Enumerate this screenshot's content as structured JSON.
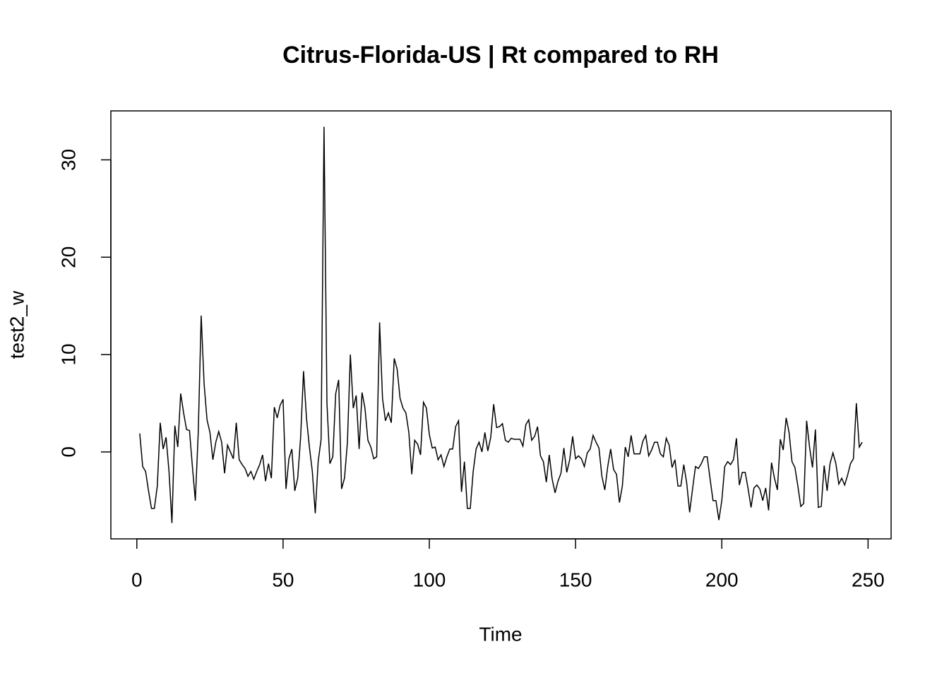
{
  "chart_data": {
    "type": "line",
    "title": "Citrus-Florida-US | Rt compared to RH",
    "x_label": "Time",
    "y_label": "test2_w",
    "x": [
      1,
      2,
      3,
      4,
      5,
      6,
      7,
      8,
      9,
      10,
      11,
      12,
      13,
      14,
      15,
      16,
      17,
      18,
      19,
      20,
      21,
      22,
      23,
      24,
      25,
      26,
      27,
      28,
      29,
      30,
      31,
      32,
      33,
      34,
      35,
      36,
      37,
      38,
      39,
      40,
      41,
      42,
      43,
      44,
      45,
      46,
      47,
      48,
      49,
      50,
      51,
      52,
      53,
      54,
      55,
      56,
      57,
      58,
      59,
      60,
      61,
      62,
      63,
      64,
      65,
      66,
      67,
      68,
      69,
      70,
      71,
      72,
      73,
      74,
      75,
      76,
      77,
      78,
      79,
      80,
      81,
      82,
      83,
      84,
      85,
      86,
      87,
      88,
      89,
      90,
      91,
      92,
      93,
      94,
      95,
      96,
      97,
      98,
      99,
      100,
      101,
      102,
      103,
      104,
      105,
      106,
      107,
      108,
      109,
      110,
      111,
      112,
      113,
      114,
      115,
      116,
      117,
      118,
      119,
      120,
      121,
      122,
      123,
      124,
      125,
      126,
      127,
      128,
      129,
      130,
      131,
      132,
      133,
      134,
      135,
      136,
      137,
      138,
      139,
      140,
      141,
      142,
      143,
      144,
      145,
      146,
      147,
      148,
      149,
      150,
      151,
      152,
      153,
      154,
      155,
      156,
      157,
      158,
      159,
      160,
      161,
      162,
      163,
      164,
      165,
      166,
      167,
      168,
      169,
      170,
      171,
      172,
      173,
      174,
      175,
      176,
      177,
      178,
      179,
      180,
      181,
      182,
      183,
      184,
      185,
      186,
      187,
      188,
      189,
      190,
      191,
      192,
      193,
      194,
      195,
      196,
      197,
      198,
      199,
      200,
      201,
      202,
      203,
      204,
      205,
      206,
      207,
      208,
      209,
      210,
      211,
      212,
      213,
      214,
      215,
      216,
      217,
      218,
      219,
      220,
      221,
      222,
      223,
      224,
      225,
      226,
      227,
      228,
      229,
      230,
      231,
      232,
      233,
      234,
      235,
      236,
      237,
      238,
      239,
      240,
      241,
      242,
      243,
      244,
      245,
      246,
      247,
      248
    ],
    "series": [
      {
        "color": "#000000",
        "values": [
          1.9,
          -1.5,
          -2,
          -4,
          -5.8,
          -5.8,
          -3.5,
          3,
          0.3,
          1.5,
          -2,
          -7.3,
          2.7,
          0.5,
          6,
          4,
          2.3,
          2.2,
          -1.5,
          -5,
          2,
          14,
          7,
          3.3,
          2,
          -0.8,
          1,
          2.1,
          1,
          -2.2,
          0.7,
          0,
          -0.7,
          3,
          -0.8,
          -1.3,
          -1.7,
          -2.5,
          -2,
          -2.8,
          -2,
          -1.3,
          -0.3,
          -3,
          -1.2,
          -2.7,
          4.6,
          3.5,
          4.8,
          5.4,
          -3.8,
          -0.7,
          0.3,
          -4,
          -2.7,
          1.5,
          8.3,
          3.5,
          0.5,
          -2,
          -6.3,
          -1,
          1.3,
          33.4,
          5,
          -1.2,
          -0.5,
          6,
          7.4,
          -3.8,
          -2.7,
          1,
          10,
          4.5,
          5.8,
          0.3,
          6.1,
          4.5,
          1.2,
          0.5,
          -0.7,
          -0.5,
          13.3,
          5.5,
          3.2,
          4,
          3,
          9.6,
          8.5,
          5.5,
          4.5,
          4,
          2,
          -2.3,
          1.2,
          0.8,
          -0.3,
          5.1,
          4.5,
          1.8,
          0.4,
          0.5,
          -0.8,
          -0.3,
          -1.5,
          -0.5,
          0.3,
          0.3,
          2.6,
          3.2,
          -4.1,
          -1,
          -5.8,
          -5.8,
          -2,
          0.3,
          1,
          0,
          2,
          0.1,
          1.5,
          4.9,
          2.5,
          2.6,
          2.9,
          1.2,
          1,
          1.4,
          1.3,
          1.3,
          1.3,
          0.6,
          2.8,
          3.3,
          1.2,
          1.6,
          2.6,
          -0.4,
          -1,
          -3.1,
          -0.3,
          -2.8,
          -4.2,
          -3,
          -2.2,
          0.4,
          -2.1,
          -0.8,
          1.6,
          -0.7,
          -0.4,
          -0.7,
          -1.5,
          -0.1,
          0.3,
          1.7,
          1,
          0.4,
          -2.5,
          -3.9,
          -1.5,
          0.3,
          -1.8,
          -2.3,
          -5.2,
          -3.5,
          0.5,
          -0.5,
          1.7,
          -0.2,
          -0.2,
          -0.2,
          1.1,
          1.7,
          -0.4,
          0.2,
          1,
          1,
          -0.2,
          -0.5,
          1.4,
          0.7,
          -1.6,
          -0.8,
          -3.5,
          -3.5,
          -1.3,
          -3.2,
          -6.2,
          -3.8,
          -1.5,
          -1.7,
          -1.2,
          -0.5,
          -0.5,
          -2.8,
          -5,
          -5,
          -7,
          -5,
          -1.5,
          -1,
          -1.3,
          -0.8,
          1.4,
          -3.4,
          -2.1,
          -2.1,
          -3.8,
          -5.7,
          -3.7,
          -3.4,
          -3.8,
          -5,
          -3.7,
          -6,
          -1.1,
          -2.7,
          -3.9,
          1.3,
          0.2,
          3.5,
          2,
          -1,
          -1.6,
          -3.5,
          -5.6,
          -5.3,
          3.2,
          0.5,
          -1.6,
          2.3,
          -5.7,
          -5.6,
          -1.4,
          -4,
          -1.2,
          -0.1,
          -1.2,
          -3.3,
          -2.7,
          -3.4,
          -2.4,
          -1.2,
          -0.7,
          5,
          0.5,
          1
        ]
      }
    ],
    "xlim": [
      -8.88,
      257.88
    ],
    "ylim": [
      -8.93,
      35.03
    ],
    "xticks": [
      0,
      50,
      100,
      150,
      200,
      250
    ],
    "yticks": [
      0,
      10,
      20,
      30
    ]
  }
}
